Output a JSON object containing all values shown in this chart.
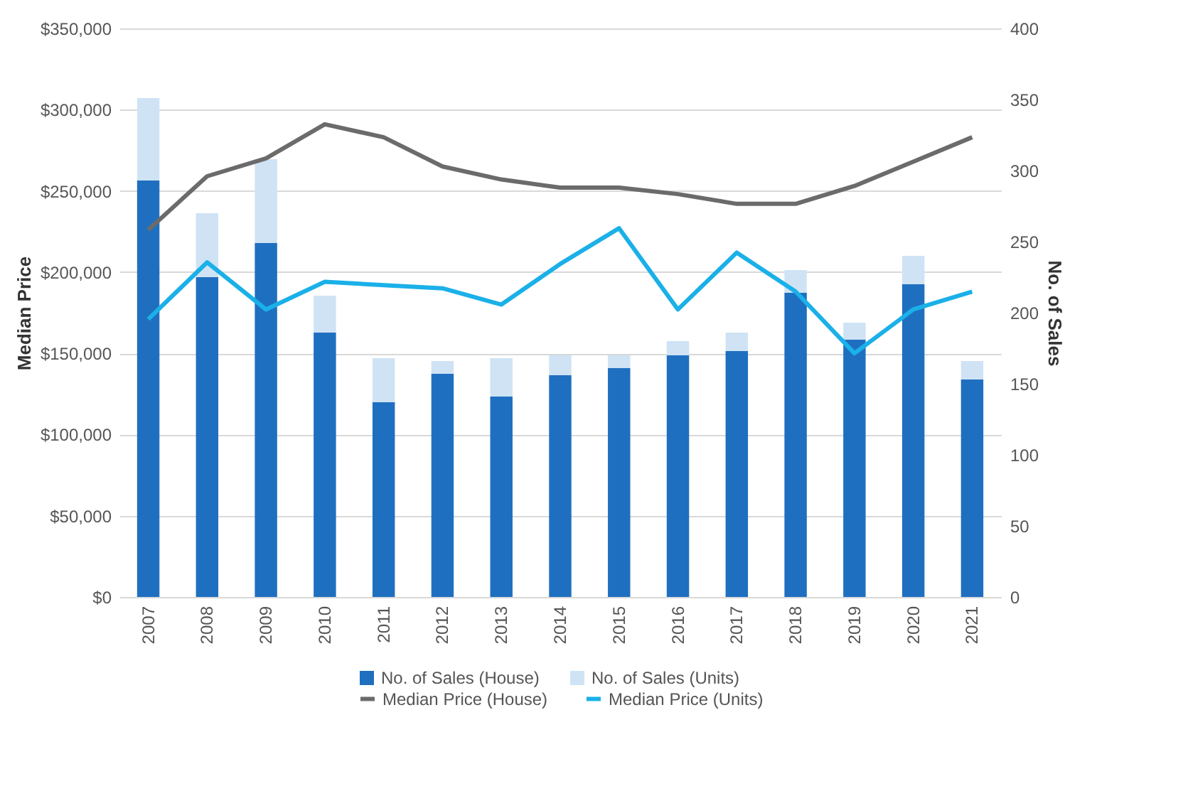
{
  "chart_data": {
    "type": "bar",
    "ylabel": "Median Price",
    "y2label": "No. of Sales",
    "categories": [
      "2007",
      "2008",
      "2009",
      "2010",
      "2011",
      "2012",
      "2013",
      "2014",
      "2015",
      "2016",
      "2017",
      "2018",
      "2019",
      "2020",
      "2021"
    ],
    "stacked": true,
    "grid": "y",
    "legend": "bottom",
    "marker": "none",
    "line_style": "solid",
    "ylim": [
      0,
      350000
    ],
    "yticks": [
      {
        "value": 0,
        "label": "$0"
      },
      {
        "value": 50000,
        "label": "$50,000"
      },
      {
        "value": 100000,
        "label": "$100,000"
      },
      {
        "value": 150000,
        "label": "$150,000"
      },
      {
        "value": 200000,
        "label": "$200,000"
      },
      {
        "value": 250000,
        "label": "$250,000"
      },
      {
        "value": 300000,
        "label": "$300,000"
      },
      {
        "value": 350000,
        "label": "$350,000"
      }
    ],
    "y2lim": [
      0,
      400
    ],
    "y2ticks": [
      0,
      50,
      100,
      150,
      200,
      250,
      300,
      350,
      400
    ],
    "series": [
      {
        "name": "No. of Sales (House)",
        "axis": "y2",
        "color": "#1f6fc0",
        "values": [
          293,
          225,
          249,
          186,
          137,
          157,
          141,
          156,
          161,
          170,
          173,
          214,
          181,
          220,
          153
        ]
      },
      {
        "name": "No. of Sales (Units)",
        "axis": "y2",
        "color": "#cfe3f5",
        "values": [
          58,
          45,
          59,
          26,
          31,
          9,
          27,
          14,
          9,
          10,
          13,
          16,
          12,
          20,
          13
        ]
      },
      {
        "name": "Median Price (House)",
        "type": "line",
        "color": "#6b6b6b",
        "values": [
          226000,
          259000,
          270000,
          291000,
          283000,
          265000,
          257000,
          252000,
          252000,
          248000,
          242000,
          242000,
          253000,
          268000,
          283000
        ]
      },
      {
        "name": "Median Price (Units)",
        "type": "line",
        "color": "#1ab0e8",
        "values": [
          171000,
          206000,
          177000,
          194000,
          192000,
          190000,
          180000,
          205000,
          227000,
          177000,
          212000,
          188000,
          150000,
          177000,
          188000
        ]
      }
    ]
  }
}
